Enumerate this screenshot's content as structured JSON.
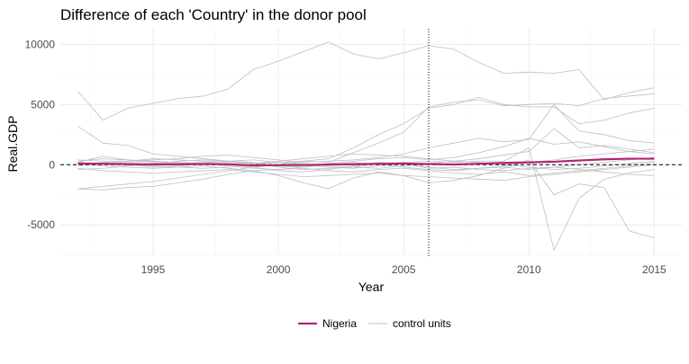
{
  "chart_data": {
    "type": "line",
    "title": "Difference of each 'Country' in the donor pool",
    "xlabel": "Year",
    "ylabel": "Real.GDP",
    "xlim": [
      1991.3,
      2016.1
    ],
    "ylim": [
      -7600,
      11300
    ],
    "x_ticks": [
      1995,
      2000,
      2005,
      2010,
      2015
    ],
    "y_ticks": [
      -5000,
      0,
      5000,
      10000
    ],
    "y_tick_labels": [
      "-5000",
      "0",
      "5000",
      "10000"
    ],
    "grid": true,
    "legend_position": "bottom",
    "reference_lines": {
      "horizontal_y": 0,
      "vertical_x": 2006
    },
    "x": [
      1992,
      1993,
      1994,
      1995,
      1996,
      1997,
      1998,
      1999,
      2000,
      2001,
      2002,
      2003,
      2004,
      2005,
      2006,
      2007,
      2008,
      2009,
      2010,
      2011,
      2012,
      2013,
      2014,
      2015
    ],
    "series": [
      {
        "name": "Nigeria",
        "color": "#b5246f",
        "role": "treated",
        "values": [
          100,
          80,
          50,
          30,
          40,
          60,
          40,
          -60,
          -40,
          -30,
          20,
          40,
          80,
          100,
          60,
          20,
          80,
          150,
          200,
          250,
          350,
          450,
          500,
          500
        ]
      },
      {
        "name": "control units",
        "color": "#bfbfbf",
        "role": "control",
        "lines": [
          [
            6100,
            3700,
            4700,
            5100,
            5500,
            5700,
            6300,
            7900,
            8600,
            9400,
            10200,
            9200,
            8800,
            9300,
            9900,
            9600,
            8500,
            7600,
            7700,
            7600,
            7900,
            5400,
            6000,
            6400
          ],
          [
            3200,
            1800,
            1600,
            900,
            700,
            500,
            300,
            100,
            200,
            300,
            200,
            1000,
            1800,
            2700,
            4800,
            5200,
            5400,
            4900,
            5000,
            5100,
            4900,
            5500,
            5700,
            5900
          ],
          [
            -2000,
            -1800,
            -1600,
            -1400,
            -1100,
            -800,
            -500,
            -200,
            0,
            300,
            500,
            1400,
            2500,
            3400,
            4700,
            5000,
            5600,
            5000,
            4800,
            4800,
            3400,
            3700,
            4300,
            4700
          ],
          [
            -2000,
            -2100,
            -1900,
            -1800,
            -1500,
            -1200,
            -800,
            -500,
            -900,
            -1500,
            -2000,
            -1100,
            -600,
            -900,
            -1500,
            -1300,
            -900,
            -300,
            400,
            -2500,
            -1600,
            -1900,
            -5500,
            -6100
          ],
          [
            200,
            700,
            400,
            200,
            100,
            200,
            300,
            200,
            -200,
            -400,
            -300,
            -200,
            100,
            200,
            300,
            200,
            300,
            300,
            1400,
            -7100,
            -2800,
            -1200,
            -700,
            -400
          ],
          [
            400,
            300,
            300,
            400,
            500,
            700,
            800,
            600,
            400,
            200,
            300,
            400,
            600,
            900,
            1400,
            1800,
            2200,
            1900,
            2100,
            5000,
            2800,
            2500,
            2000,
            1800
          ],
          [
            300,
            500,
            400,
            300,
            200,
            100,
            -100,
            -300,
            -400,
            -200,
            100,
            300,
            500,
            600,
            400,
            600,
            1000,
            1500,
            2200,
            1700,
            1900,
            1500,
            1100,
            900
          ],
          [
            0,
            200,
            300,
            500,
            400,
            300,
            200,
            100,
            300,
            500,
            700,
            900,
            800,
            700,
            500,
            300,
            500,
            800,
            1100,
            3000,
            1400,
            1600,
            1300,
            1000
          ],
          [
            -300,
            -500,
            -600,
            -700,
            -600,
            -500,
            -400,
            -600,
            -800,
            -1000,
            -900,
            -800,
            -700,
            -900,
            -1000,
            -1100,
            -1200,
            -1300,
            -1000,
            -800,
            -600,
            -400,
            -200,
            0
          ],
          [
            -100,
            100,
            200,
            300,
            200,
            100,
            0,
            -200,
            -500,
            -600,
            -400,
            -100,
            200,
            100,
            -200,
            -400,
            -300,
            -100,
            200,
            400,
            700,
            900,
            1100,
            1300
          ],
          [
            100,
            -100,
            -200,
            -300,
            -200,
            -100,
            -300,
            -500,
            -400,
            -300,
            -500,
            -600,
            -400,
            -300,
            -500,
            -700,
            -800,
            -600,
            -900,
            -700,
            -500,
            -300,
            -100,
            200
          ],
          [
            0,
            200,
            0,
            -200,
            -100,
            100,
            300,
            400,
            200,
            0,
            -200,
            -300,
            -100,
            100,
            -300,
            -200,
            -400,
            -500,
            -300,
            -200,
            -400,
            -600,
            -800,
            -900
          ],
          [
            -400,
            -300,
            -100,
            100,
            300,
            400,
            300,
            100,
            -100,
            -200,
            0,
            200,
            0,
            -200,
            -400,
            -500,
            -300,
            -200,
            -400,
            -200,
            0,
            200,
            400,
            600
          ],
          [
            200,
            100,
            0,
            -100,
            -200,
            -300,
            -200,
            0,
            200,
            100,
            -100,
            -200,
            -300,
            -100,
            100,
            300,
            200,
            0,
            -200,
            -400,
            -300,
            -100,
            100,
            300
          ]
        ]
      }
    ]
  },
  "legend": {
    "items": [
      {
        "label": "Nigeria",
        "color": "#b5246f"
      },
      {
        "label": "control units",
        "color": "#bfbfbf"
      }
    ]
  }
}
